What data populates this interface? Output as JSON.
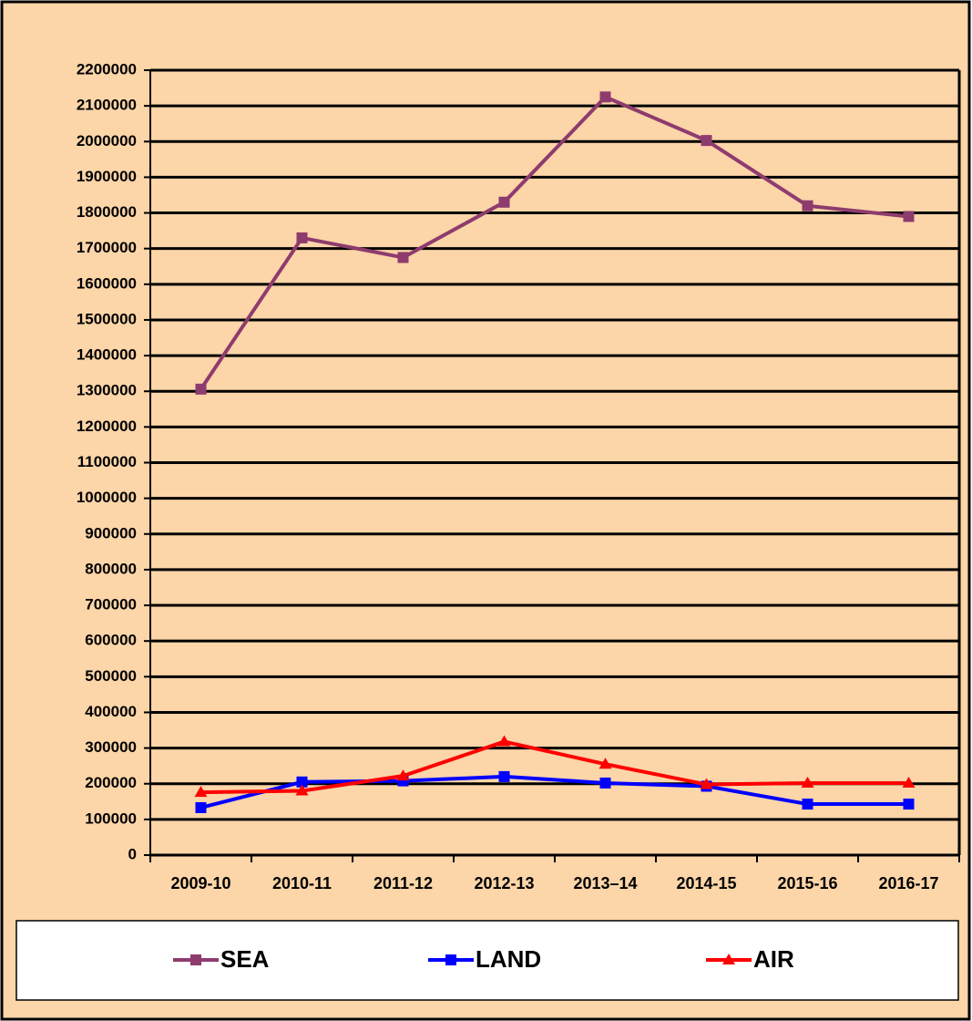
{
  "chart_data": {
    "type": "line",
    "categories": [
      "2009-10",
      "2010-11",
      "2011-12",
      "2012-13",
      "2013–14",
      "2014-15",
      "2015-16",
      "2016-17"
    ],
    "series": [
      {
        "name": "SEA",
        "color": "#8e3b6e",
        "marker": "square",
        "values": [
          1306000,
          1730000,
          1675000,
          1830000,
          2125000,
          2003000,
          1820000,
          1790000
        ]
      },
      {
        "name": "LAND",
        "color": "#0000ff",
        "marker": "square",
        "values": [
          133000,
          205000,
          208000,
          220000,
          202000,
          193000,
          143000,
          143000
        ]
      },
      {
        "name": "AIR",
        "color": "#ff0000",
        "marker": "triangle",
        "values": [
          176000,
          180000,
          222000,
          318000,
          255000,
          198000,
          202000,
          202000
        ]
      }
    ],
    "ylim": [
      0,
      2200000
    ],
    "yticks": [
      0,
      100000,
      200000,
      300000,
      400000,
      500000,
      600000,
      700000,
      800000,
      900000,
      1000000,
      1100000,
      1200000,
      1300000,
      1400000,
      1500000,
      1600000,
      1700000,
      1800000,
      1900000,
      2000000,
      2100000,
      2200000
    ],
    "grid": true,
    "legend": "bottom"
  }
}
